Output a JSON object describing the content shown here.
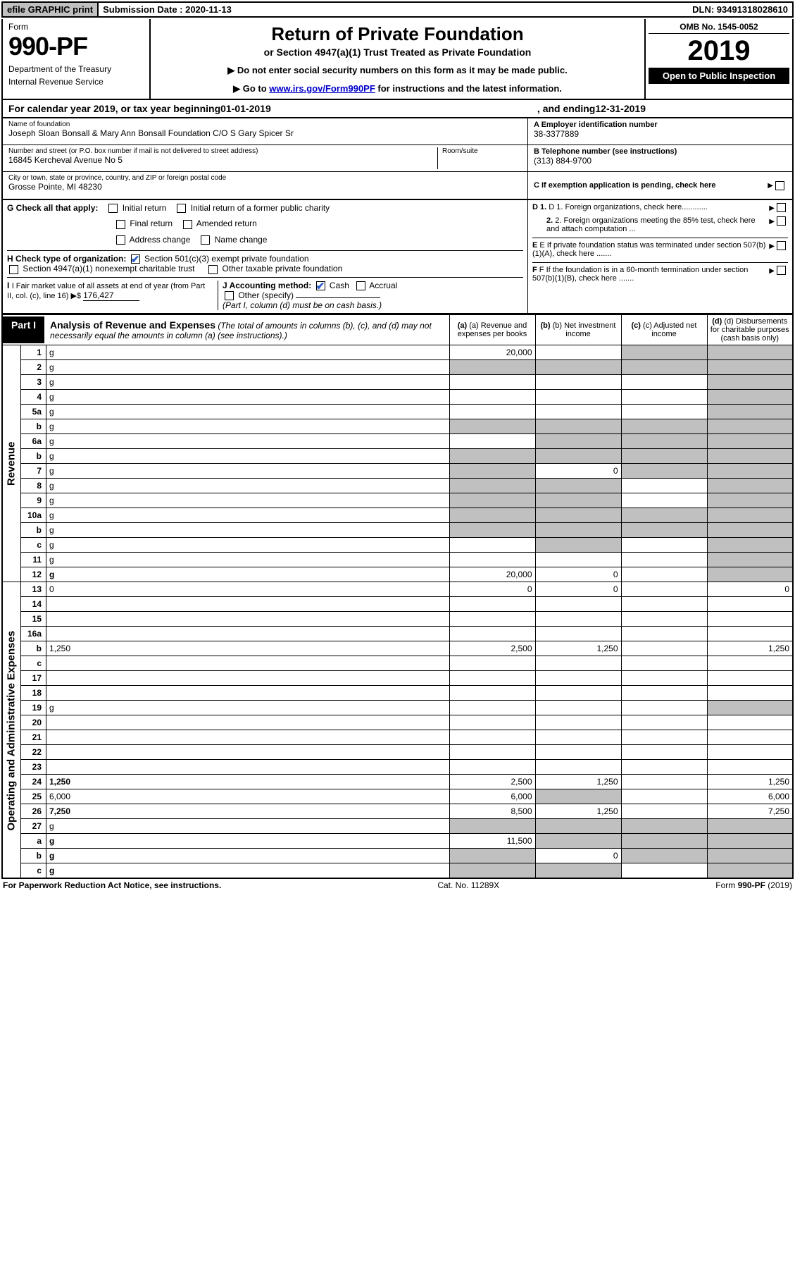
{
  "top_bar": {
    "efile": "efile GRAPHIC print",
    "submission": "Submission Date : 2020-11-13",
    "dln": "DLN: 93491318028610"
  },
  "header": {
    "form_word": "Form",
    "form_num": "990-PF",
    "dept": "Department of the Treasury",
    "irs": "Internal Revenue Service",
    "title": "Return of Private Foundation",
    "sub1": "or Section 4947(a)(1) Trust Treated as Private Foundation",
    "sub2a": "▶ Do not enter social security numbers on this form as it may be made public.",
    "sub2b_pre": "▶ Go to ",
    "sub2b_link": "www.irs.gov/Form990PF",
    "sub2b_post": " for instructions and the latest information.",
    "omb": "OMB No. 1545-0052",
    "year": "2019",
    "inspection": "Open to Public Inspection"
  },
  "calendar": {
    "prefix": "For calendar year 2019, or tax year beginning ",
    "begin": "01-01-2019",
    "mid": ", and ending ",
    "end": "12-31-2019"
  },
  "info": {
    "name_label": "Name of foundation",
    "name_value": "Joseph Sloan Bonsall & Mary Ann Bonsall Foundation C/O S Gary Spicer Sr",
    "addr_label": "Number and street (or P.O. box number if mail is not delivered to street address)",
    "addr_value": "16845 Kercheval Avenue No 5",
    "room_label": "Room/suite",
    "city_label": "City or town, state or province, country, and ZIP or foreign postal code",
    "city_value": "Grosse Pointe, MI  48230",
    "ein_label": "A Employer identification number",
    "ein_value": "38-3377889",
    "tel_label": "B Telephone number (see instructions)",
    "tel_value": "(313) 884-9700",
    "c_label": "C If exemption application is pending, check here"
  },
  "checks_left": {
    "g_label": "G Check all that apply:",
    "g_items": [
      "Initial return",
      "Initial return of a former public charity",
      "Final return",
      "Amended return",
      "Address change",
      "Name change"
    ],
    "h_label": "H Check type of organization:",
    "h1": "Section 501(c)(3) exempt private foundation",
    "h2": "Section 4947(a)(1) nonexempt charitable trust",
    "h3": "Other taxable private foundation",
    "i_label": "I Fair market value of all assets at end of year (from Part II, col. (c), line 16) ▶$ ",
    "i_value": "176,427",
    "j_label": "J Accounting method:",
    "j_cash": "Cash",
    "j_accrual": "Accrual",
    "j_other": "Other (specify)",
    "j_note": "(Part I, column (d) must be on cash basis.)"
  },
  "checks_right": {
    "d1": "D 1. Foreign organizations, check here............",
    "d2": "2. Foreign organizations meeting the 85% test, check here and attach computation ...",
    "e": "E  If private foundation status was terminated under section 507(b)(1)(A), check here .......",
    "f": "F  If the foundation is in a 60-month termination under section 507(b)(1)(B), check here ......."
  },
  "part1": {
    "label": "Part I",
    "title": "Analysis of Revenue and Expenses",
    "title_note": "(The total of amounts in columns (b), (c), and (d) may not necessarily equal the amounts in column (a) (see instructions).)",
    "col_a": "(a) Revenue and expenses per books",
    "col_b": "(b) Net investment income",
    "col_c": "(c) Adjusted net income",
    "col_d": "(d) Disbursements for charitable purposes (cash basis only)"
  },
  "rows": [
    {
      "n": "1",
      "d": "g",
      "a": "20,000",
      "b": "",
      "c": "g"
    },
    {
      "n": "2",
      "d": "g",
      "a": "g",
      "b": "g",
      "c": "g"
    },
    {
      "n": "3",
      "d": "g",
      "a": "",
      "b": "",
      "c": ""
    },
    {
      "n": "4",
      "d": "g",
      "a": "",
      "b": "",
      "c": ""
    },
    {
      "n": "5a",
      "d": "g",
      "a": "",
      "b": "",
      "c": ""
    },
    {
      "n": "b",
      "d": "g",
      "a": "g",
      "b": "g",
      "c": "g"
    },
    {
      "n": "6a",
      "d": "g",
      "a": "",
      "b": "g",
      "c": "g"
    },
    {
      "n": "b",
      "d": "g",
      "a": "g",
      "b": "g",
      "c": "g"
    },
    {
      "n": "7",
      "d": "g",
      "a": "g",
      "b": "0",
      "c": "g"
    },
    {
      "n": "8",
      "d": "g",
      "a": "g",
      "b": "g",
      "c": ""
    },
    {
      "n": "9",
      "d": "g",
      "a": "g",
      "b": "g",
      "c": ""
    },
    {
      "n": "10a",
      "d": "g",
      "a": "g",
      "b": "g",
      "c": "g"
    },
    {
      "n": "b",
      "d": "g",
      "a": "g",
      "b": "g",
      "c": "g"
    },
    {
      "n": "c",
      "d": "g",
      "a": "",
      "b": "g",
      "c": ""
    },
    {
      "n": "11",
      "d": "g",
      "a": "",
      "b": "",
      "c": ""
    },
    {
      "n": "12",
      "d": "g",
      "a": "20,000",
      "b": "0",
      "c": "",
      "bold": true
    },
    {
      "n": "13",
      "d": "0",
      "a": "0",
      "b": "0",
      "c": ""
    },
    {
      "n": "14",
      "d": "",
      "a": "",
      "b": "",
      "c": ""
    },
    {
      "n": "15",
      "d": "",
      "a": "",
      "b": "",
      "c": ""
    },
    {
      "n": "16a",
      "d": "",
      "a": "",
      "b": "",
      "c": ""
    },
    {
      "n": "b",
      "d": "1,250",
      "a": "2,500",
      "b": "1,250",
      "c": ""
    },
    {
      "n": "c",
      "d": "",
      "a": "",
      "b": "",
      "c": ""
    },
    {
      "n": "17",
      "d": "",
      "a": "",
      "b": "",
      "c": ""
    },
    {
      "n": "18",
      "d": "",
      "a": "",
      "b": "",
      "c": ""
    },
    {
      "n": "19",
      "d": "g",
      "a": "",
      "b": "",
      "c": ""
    },
    {
      "n": "20",
      "d": "",
      "a": "",
      "b": "",
      "c": ""
    },
    {
      "n": "21",
      "d": "",
      "a": "",
      "b": "",
      "c": ""
    },
    {
      "n": "22",
      "d": "",
      "a": "",
      "b": "",
      "c": ""
    },
    {
      "n": "23",
      "d": "",
      "a": "",
      "b": "",
      "c": ""
    },
    {
      "n": "24",
      "d": "1,250",
      "a": "2,500",
      "b": "1,250",
      "c": "",
      "bold": true
    },
    {
      "n": "25",
      "d": "6,000",
      "a": "6,000",
      "b": "g",
      "c": ""
    },
    {
      "n": "26",
      "d": "7,250",
      "a": "8,500",
      "b": "1,250",
      "c": "",
      "bold": true
    },
    {
      "n": "27",
      "d": "g",
      "a": "g",
      "b": "g",
      "c": "g"
    },
    {
      "n": "a",
      "d": "g",
      "a": "11,500",
      "b": "g",
      "c": "g",
      "bold": true
    },
    {
      "n": "b",
      "d": "g",
      "a": "g",
      "b": "0",
      "c": "g",
      "bold": true
    },
    {
      "n": "c",
      "d": "g",
      "a": "g",
      "b": "g",
      "c": "",
      "bold": true
    }
  ],
  "side_labels": {
    "revenue": "Revenue",
    "expenses": "Operating and Administrative Expenses"
  },
  "footer": {
    "left": "For Paperwork Reduction Act Notice, see instructions.",
    "mid": "Cat. No. 11289X",
    "right": "Form 990-PF (2019)"
  }
}
